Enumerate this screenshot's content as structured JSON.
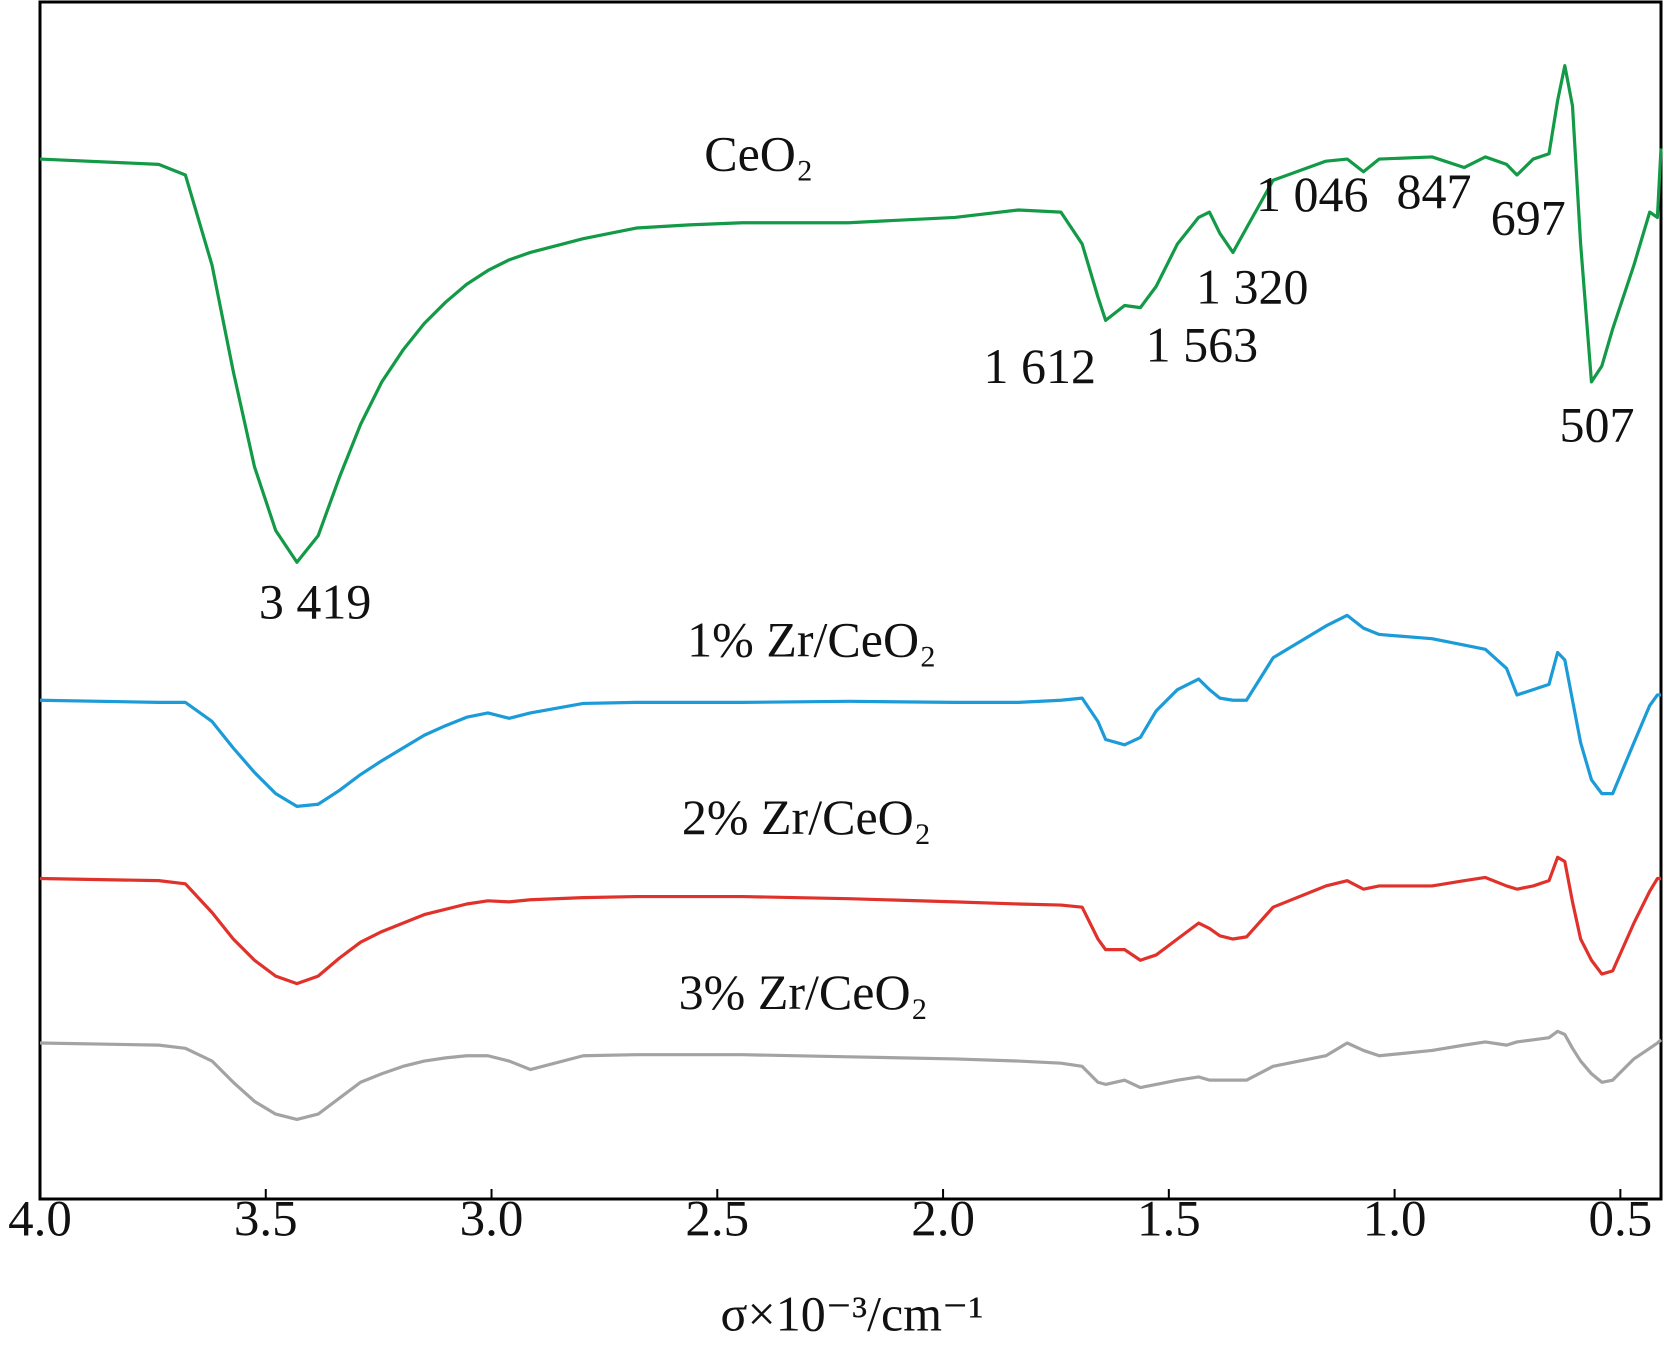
{
  "chart_data": {
    "type": "line",
    "x_label": "σ×10⁻³/cm⁻¹",
    "xlim": [
      4.0,
      0.41
    ],
    "ylim": [
      0,
      112.8
    ],
    "xticks": [
      {
        "value": 4,
        "label": "4.0"
      },
      3.5,
      {
        "value": 3,
        "label": "3.0"
      },
      2.5,
      {
        "value": 2,
        "label": "2.0"
      },
      1.5,
      {
        "value": 1,
        "label": "1.0"
      },
      0.5
    ],
    "x": [
      4.0,
      3.737,
      3.678,
      3.619,
      3.572,
      3.525,
      3.478,
      3.431,
      3.384,
      3.337,
      3.29,
      3.243,
      3.196,
      3.149,
      3.102,
      3.055,
      3.008,
      2.961,
      2.914,
      2.797,
      2.679,
      2.562,
      2.444,
      2.209,
      1.974,
      1.833,
      1.739,
      1.692,
      1.657,
      1.64,
      1.598,
      1.563,
      1.528,
      1.481,
      1.434,
      1.41,
      1.387,
      1.358,
      1.328,
      1.269,
      1.152,
      1.105,
      1.069,
      1.034,
      0.917,
      0.846,
      0.799,
      0.752,
      0.729,
      0.693,
      0.658,
      0.639,
      0.623,
      0.606,
      0.588,
      0.564,
      0.541,
      0.517,
      0.47,
      0.435,
      0.418,
      0.41
    ],
    "series": [
      {
        "name": "CeO₂",
        "color": "#129a46",
        "values": [
          98.0,
          97.5,
          96.5,
          88.0,
          78.0,
          69.0,
          63.0,
          60.0,
          62.5,
          68.0,
          73.0,
          77.0,
          80.0,
          82.5,
          84.5,
          86.2,
          87.5,
          88.5,
          89.2,
          90.5,
          91.5,
          91.8,
          92.0,
          92.0,
          92.5,
          93.2,
          93.0,
          90.0,
          85.0,
          82.8,
          84.2,
          84.0,
          86.0,
          90.0,
          92.5,
          93.0,
          91.0,
          89.2,
          91.5,
          96.0,
          97.8,
          98.0,
          96.8,
          98.0,
          98.2,
          97.2,
          98.2,
          97.5,
          96.5,
          98.0,
          98.5,
          103.5,
          106.8,
          103.0,
          90.0,
          77.0,
          78.5,
          82.0,
          88.0,
          93.0,
          92.5,
          99.0
        ]
      },
      {
        "name": "1% Zr/CeO₂",
        "color": "#1b9bd7",
        "values": [
          47.0,
          46.8,
          46.8,
          45.0,
          42.5,
          40.2,
          38.2,
          37.0,
          37.2,
          38.5,
          40.0,
          41.3,
          42.5,
          43.7,
          44.6,
          45.4,
          45.8,
          45.3,
          45.8,
          46.7,
          46.8,
          46.8,
          46.8,
          46.9,
          46.8,
          46.8,
          47.0,
          47.2,
          45.0,
          43.3,
          42.8,
          43.5,
          46.0,
          48.0,
          49.0,
          48.0,
          47.2,
          47.0,
          47.0,
          51.0,
          54.0,
          55.0,
          53.8,
          53.2,
          52.8,
          52.2,
          51.8,
          50.0,
          47.5,
          48.0,
          48.5,
          51.5,
          50.8,
          47.0,
          43.0,
          39.5,
          38.2,
          38.2,
          43.0,
          46.5,
          47.5,
          47.5
        ]
      },
      {
        "name": "2% Zr/CeO₂",
        "color": "#e0322b",
        "values": [
          30.2,
          30.0,
          29.7,
          27.0,
          24.5,
          22.5,
          21.0,
          20.3,
          21.0,
          22.7,
          24.2,
          25.2,
          26.0,
          26.8,
          27.3,
          27.8,
          28.1,
          28.0,
          28.2,
          28.4,
          28.5,
          28.5,
          28.5,
          28.3,
          28.0,
          27.8,
          27.7,
          27.5,
          24.5,
          23.5,
          23.5,
          22.5,
          23.0,
          24.5,
          26.0,
          25.5,
          24.8,
          24.5,
          24.7,
          27.5,
          29.5,
          30.0,
          29.2,
          29.5,
          29.5,
          30.0,
          30.3,
          29.5,
          29.2,
          29.5,
          30.0,
          32.2,
          31.8,
          28.0,
          24.5,
          22.5,
          21.2,
          21.5,
          26.0,
          29.0,
          30.2,
          30.2
        ]
      },
      {
        "name": "3% Zr/CeO₂",
        "color": "#a3a3a3",
        "values": [
          14.7,
          14.5,
          14.2,
          13.0,
          11.0,
          9.2,
          8.0,
          7.5,
          8.0,
          9.5,
          11.0,
          11.8,
          12.5,
          13.0,
          13.3,
          13.5,
          13.5,
          13.0,
          12.2,
          13.5,
          13.6,
          13.6,
          13.6,
          13.4,
          13.2,
          13.0,
          12.8,
          12.5,
          11.0,
          10.8,
          11.2,
          10.5,
          10.8,
          11.2,
          11.5,
          11.2,
          11.2,
          11.2,
          11.2,
          12.5,
          13.5,
          14.7,
          14.0,
          13.5,
          14.0,
          14.5,
          14.8,
          14.5,
          14.8,
          15.0,
          15.2,
          15.8,
          15.5,
          14.2,
          13.0,
          11.8,
          11.0,
          11.2,
          13.2,
          14.2,
          14.7,
          15.0
        ]
      }
    ],
    "annotations": [
      {
        "text": "3 419",
        "x": 3.419
      },
      {
        "text": "1 612",
        "x": 1.612
      },
      {
        "text": "1 563",
        "x": 1.563
      },
      {
        "text": "1 320",
        "x": 1.32
      },
      {
        "text": "1 046",
        "x": 1.046
      },
      {
        "text": "847",
        "x": 0.847
      },
      {
        "text": "697",
        "x": 0.697
      },
      {
        "text": "507",
        "x": 0.507
      }
    ]
  }
}
